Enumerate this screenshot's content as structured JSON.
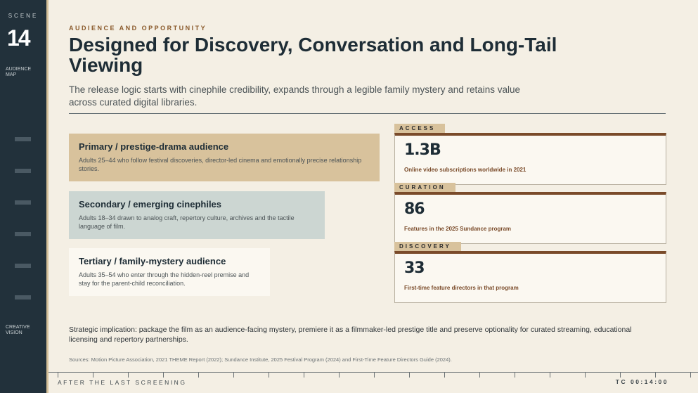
{
  "sidebar": {
    "scene_label": "SCENE",
    "scene_number": "14",
    "section": "AUDIENCE MAP",
    "bottom_label": "CREATIVE VISION"
  },
  "header": {
    "kicker": "AUDIENCE AND OPPORTUNITY",
    "title": "Designed for Discovery, Conversation and Long-Tail Viewing",
    "subtitle": "The release logic starts with cinephile credibility, expands through a legible family mystery and retains value across curated digital libraries."
  },
  "audiences": [
    {
      "title": "Primary / prestige-drama audience",
      "description": "Adults 25–44 who follow festival discoveries, director-led cinema and emotionally precise relationship stories."
    },
    {
      "title": "Secondary / emerging cinephiles",
      "description": "Adults 18–34 drawn to analog craft, repertory culture, archives and the tactile language of film."
    },
    {
      "title": "Tertiary / family-mystery audience",
      "description": "Adults 35–54 who enter through the hidden-reel premise and stay for the parent-child reconciliation."
    }
  ],
  "stats": [
    {
      "label": "ACCESS",
      "value": "1.3B",
      "description": "Online video subscriptions worldwide in 2021"
    },
    {
      "label": "CURATION",
      "value": "86",
      "description": "Features in the 2025 Sundance program"
    },
    {
      "label": "DISCOVERY",
      "value": "33",
      "description": "First-time feature directors in that program"
    }
  ],
  "implication": "Strategic implication: package the film as an audience-facing mystery, premiere it as a filmmaker-led prestige title and preserve optionality for curated streaming, educational licensing and repertory partnerships.",
  "sources": "Sources: Motion Picture Association, 2021 THEME Report (2022); Sundance Institute, 2025 Festival Program (2024) and First-Time Feature Directors Guide (2024).",
  "footer": {
    "left": "AFTER THE LAST SCREENING",
    "right": "TC 00:14:00"
  }
}
